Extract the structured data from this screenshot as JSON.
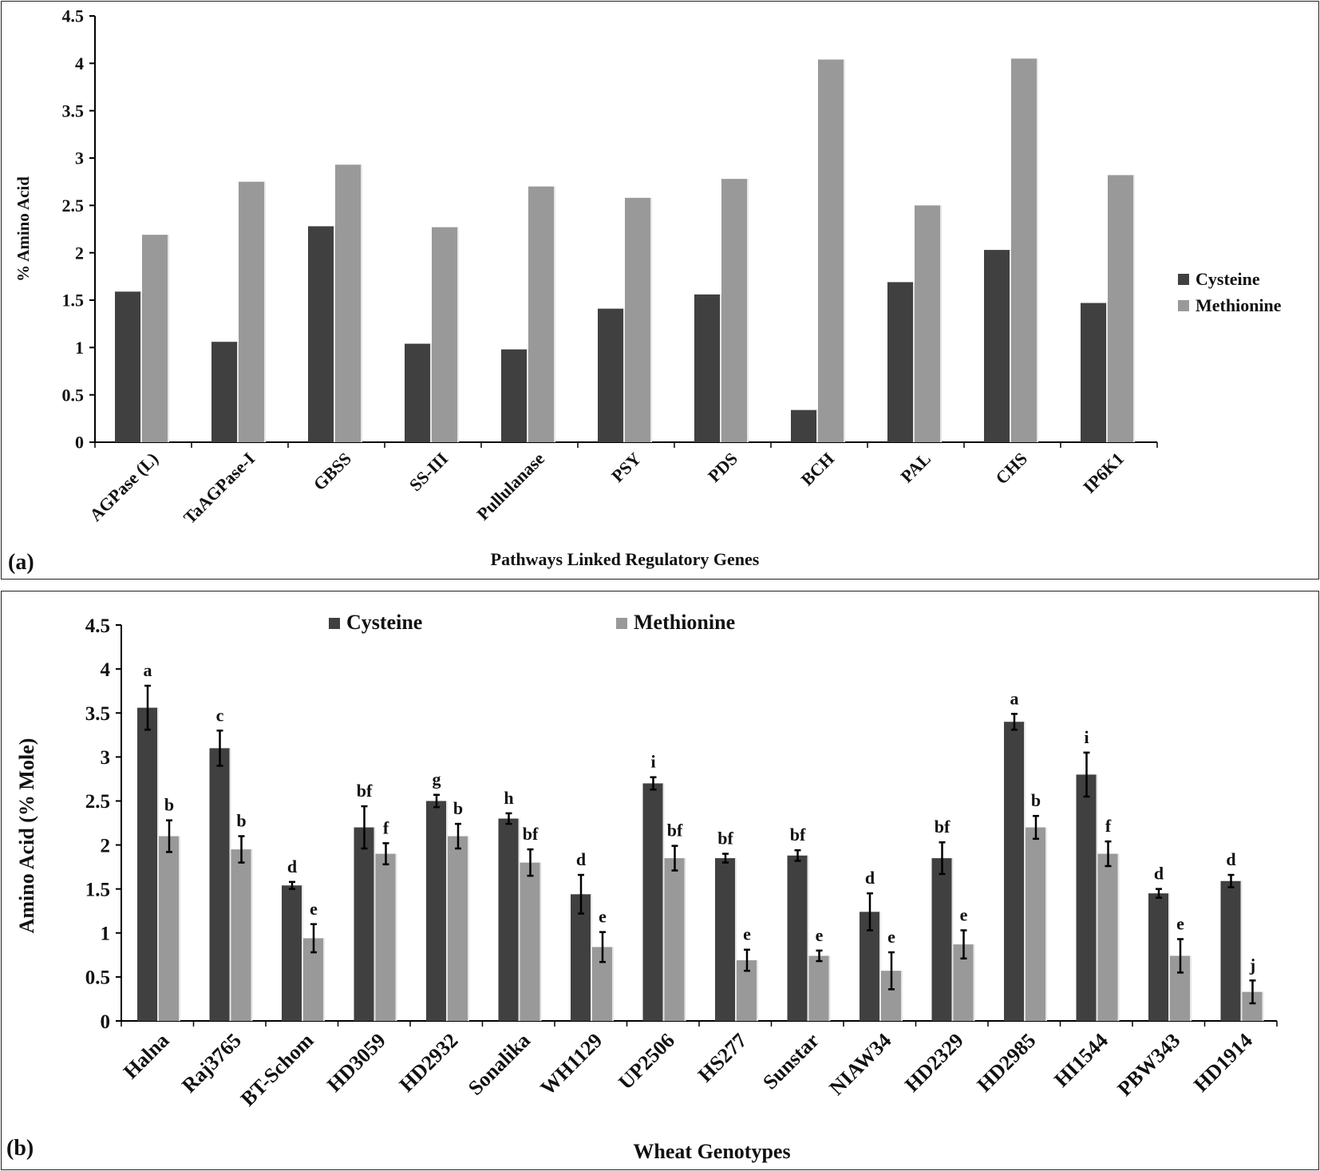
{
  "chart_data": [
    {
      "type": "bar",
      "panel_label": "(a)",
      "title": "",
      "xlabel": "Pathways Linked Regulatory Genes",
      "ylabel": "% Amino Acid",
      "ylim": [
        0,
        4.5
      ],
      "yticks": [
        "0",
        "0.5",
        "1",
        "1.5",
        "2",
        "2.5",
        "3",
        "3.5",
        "4",
        "4.5"
      ],
      "legend_position": "right",
      "categories": [
        "AGPase (L)",
        "TaAGPase-I",
        "GBSS",
        "SS-III",
        "Pullulanase",
        "PSY",
        "PDS",
        "BCH",
        "PAL",
        "CHS",
        "IP6K1"
      ],
      "series": [
        {
          "name": "Cysteine",
          "color": "#404040",
          "values": [
            1.59,
            1.06,
            2.28,
            1.04,
            0.98,
            1.41,
            1.56,
            0.34,
            1.69,
            2.03,
            1.47
          ]
        },
        {
          "name": "Methionine",
          "color": "#999999",
          "values": [
            2.19,
            2.75,
            2.93,
            2.27,
            2.7,
            2.58,
            2.78,
            4.04,
            2.5,
            4.05,
            2.82
          ]
        }
      ]
    },
    {
      "type": "bar",
      "panel_label": "(b)",
      "title": "",
      "xlabel": "Wheat Genotypes",
      "ylabel": "Amino Acid (% Mole)",
      "ylim": [
        0,
        4.5
      ],
      "yticks": [
        "0",
        "0.5",
        "1",
        "1.5",
        "2",
        "2.5",
        "3",
        "3.5",
        "4",
        "4.5"
      ],
      "legend_position": "top",
      "categories": [
        "Halna",
        "Raj3765",
        "BT-Schom",
        "HD3059",
        "HD2932",
        "Sonalika",
        "WH1129",
        "UP2506",
        "HS277",
        "Sunstar",
        "NIAW34",
        "HD2329",
        "HD2985",
        "HI1544",
        "PBW343",
        "HD1914"
      ],
      "series": [
        {
          "name": "Cysteine",
          "color": "#404040",
          "values": [
            3.56,
            3.1,
            1.54,
            2.2,
            2.5,
            2.3,
            1.44,
            2.7,
            1.85,
            1.88,
            1.24,
            1.85,
            3.4,
            2.8,
            1.45,
            1.59
          ],
          "errors": [
            0.25,
            0.2,
            0.04,
            0.24,
            0.07,
            0.06,
            0.22,
            0.07,
            0.05,
            0.06,
            0.21,
            0.18,
            0.09,
            0.25,
            0.05,
            0.07
          ],
          "annotations": [
            "a",
            "c",
            "d",
            "bf",
            "g",
            "h",
            "d",
            "i",
            "bf",
            "bf",
            "d",
            "bf",
            "a",
            "i",
            "d",
            "d"
          ]
        },
        {
          "name": "Methionine",
          "color": "#999999",
          "values": [
            2.1,
            1.95,
            0.94,
            1.9,
            2.1,
            1.8,
            0.84,
            1.85,
            0.69,
            0.74,
            0.57,
            0.87,
            2.2,
            1.9,
            0.74,
            0.33
          ],
          "errors": [
            0.18,
            0.15,
            0.16,
            0.12,
            0.14,
            0.15,
            0.17,
            0.14,
            0.12,
            0.06,
            0.21,
            0.16,
            0.13,
            0.14,
            0.19,
            0.13
          ],
          "annotations": [
            "b",
            "b",
            "e",
            "f",
            "b",
            "bf",
            "e",
            "bf",
            "e",
            "e",
            "e",
            "e",
            "b",
            "f",
            "e",
            "j"
          ]
        }
      ]
    }
  ]
}
